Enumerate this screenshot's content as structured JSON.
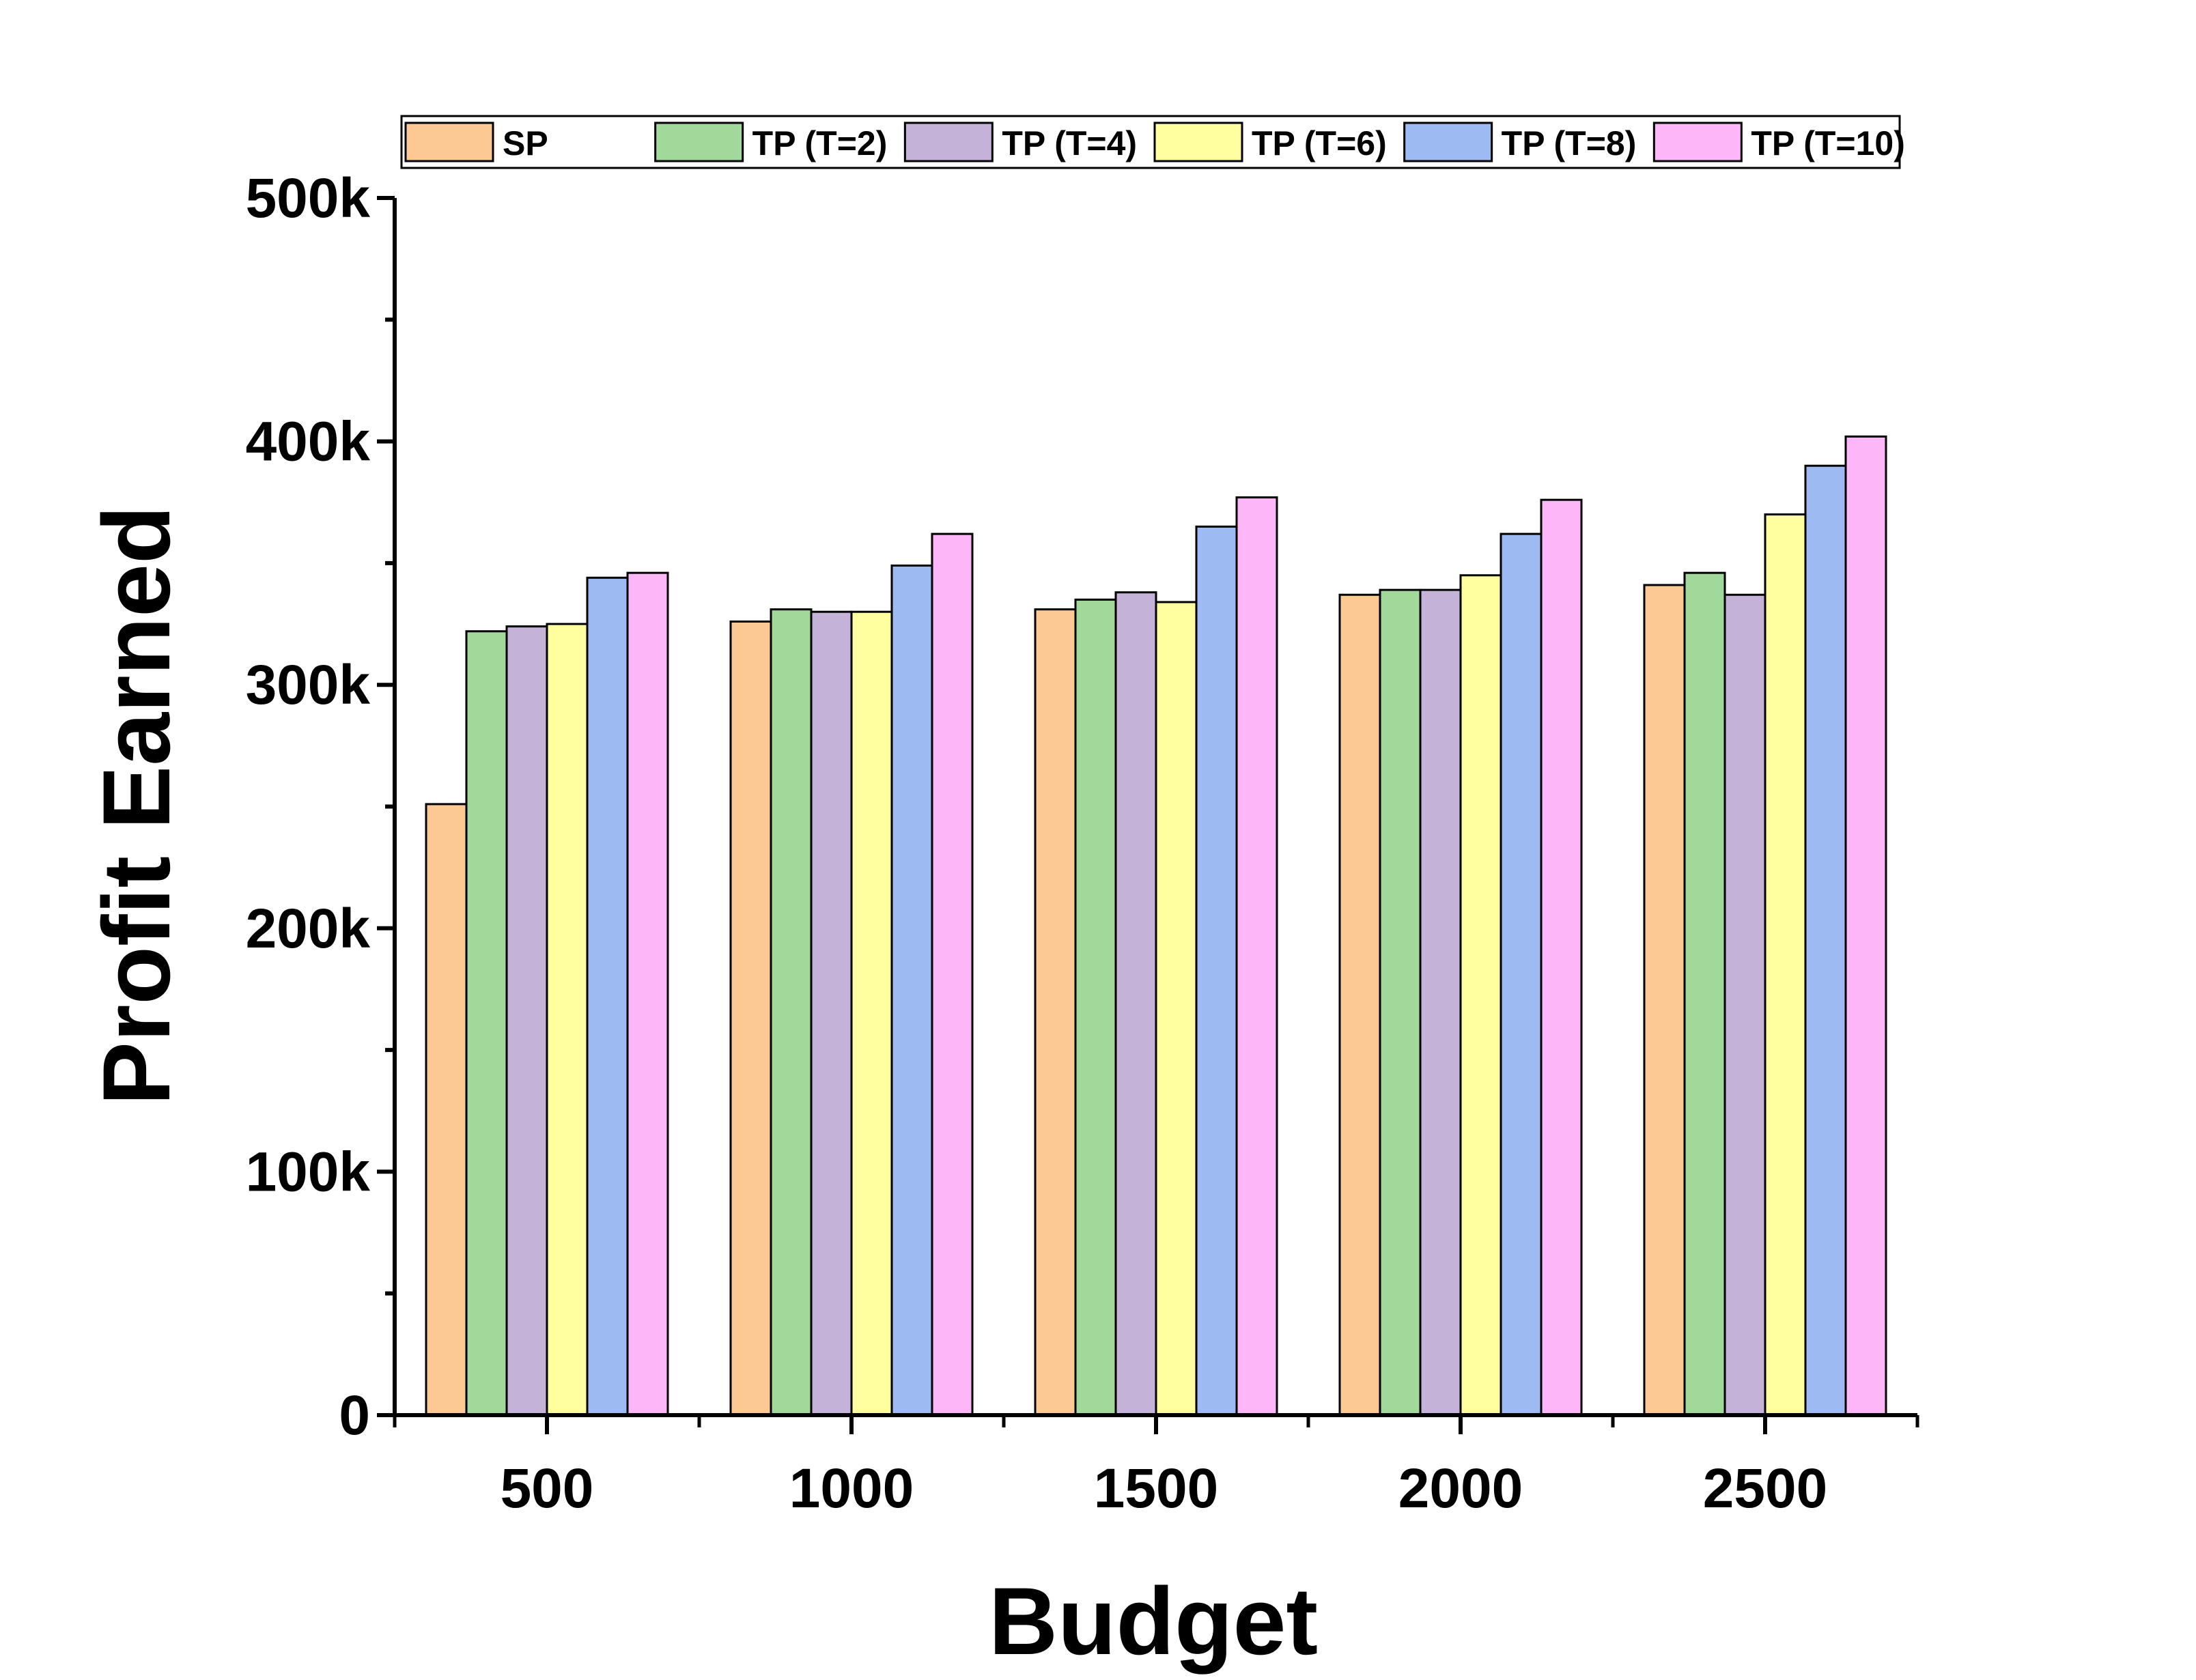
{
  "chart_data": {
    "type": "bar",
    "xlabel": "Budget",
    "ylabel": "Profit Earned",
    "categories": [
      "500",
      "1000",
      "1500",
      "2000",
      "2500"
    ],
    "ylim": [
      0,
      500000
    ],
    "yticks": [
      0,
      100000,
      200000,
      300000,
      400000,
      500000
    ],
    "ytick_labels": [
      "0",
      "100k",
      "200k",
      "300k",
      "400k",
      "500k"
    ],
    "legend_position": "top",
    "series": [
      {
        "name": "SP",
        "color": "#FCC894",
        "values": [
          251000,
          326000,
          331000,
          337000,
          341000
        ]
      },
      {
        "name": "TP (T=2)",
        "color": "#A0D99A",
        "values": [
          322000,
          331000,
          335000,
          339000,
          346000
        ]
      },
      {
        "name": "TP (T=4)",
        "color": "#C4B2D8",
        "values": [
          324000,
          330000,
          338000,
          339000,
          337000
        ]
      },
      {
        "name": "TP (T=6)",
        "color": "#FFFFA0",
        "values": [
          325000,
          330000,
          334000,
          345000,
          370000
        ]
      },
      {
        "name": "TP (T=8)",
        "color": "#9EBAF2",
        "values": [
          344000,
          349000,
          365000,
          362000,
          390000
        ]
      },
      {
        "name": "TP (T=10)",
        "color": "#FDB6F8",
        "values": [
          346000,
          362000,
          377000,
          376000,
          402000
        ]
      }
    ]
  }
}
